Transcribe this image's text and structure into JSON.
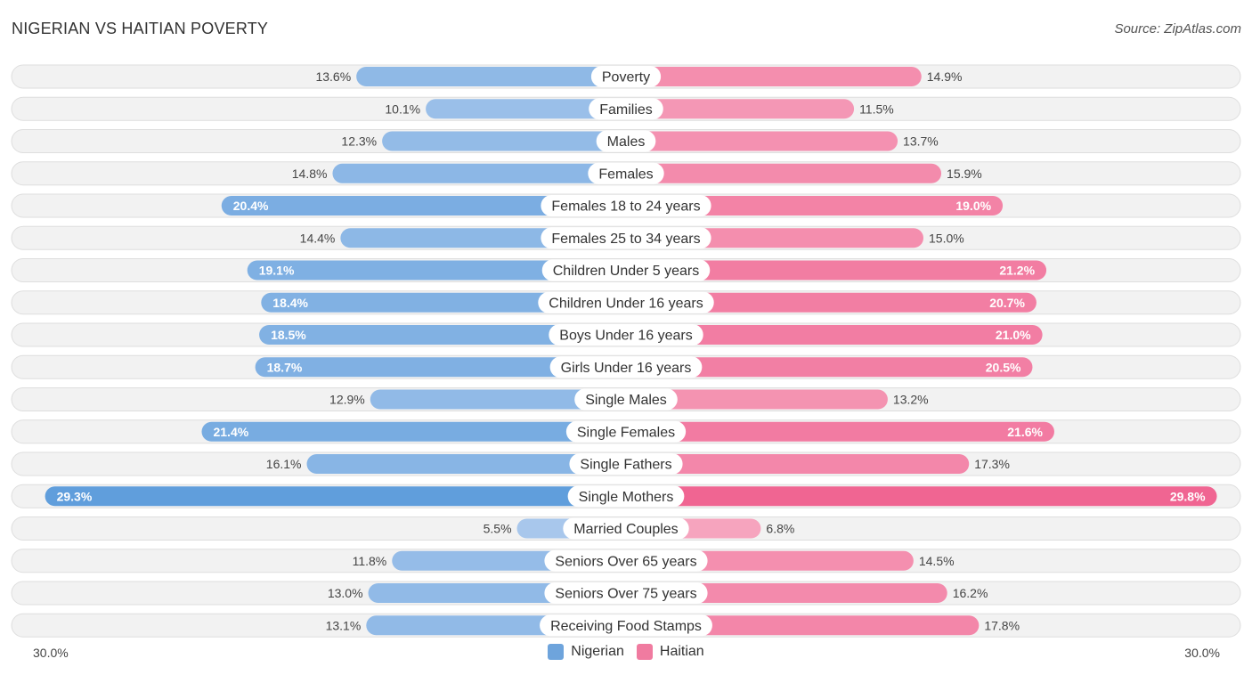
{
  "header": {
    "title": "NIGERIAN VS HAITIAN POVERTY",
    "source": "Source: ZipAtlas.com"
  },
  "colors": {
    "nigerian_light": "#a9c8ec",
    "nigerian_dark": "#5f9ddc",
    "haitian_light": "#f6a9c1",
    "haitian_dark": "#f06592",
    "row_bg": "#f2f2f2",
    "row_border": "#dedede"
  },
  "axis": {
    "left_label": "30.0%",
    "right_label": "30.0%"
  },
  "legend": [
    {
      "name": "Nigerian",
      "color": "#6ea4dc"
    },
    {
      "name": "Haitian",
      "color": "#f07ba0"
    }
  ],
  "chart_data": {
    "type": "bar",
    "orientation": "horizontal-diverging",
    "title": "NIGERIAN VS HAITIAN POVERTY",
    "xlim": [
      -30,
      30
    ],
    "xlabel": "",
    "ylabel": "",
    "categories": [
      "Poverty",
      "Families",
      "Males",
      "Females",
      "Females 18 to 24 years",
      "Females 25 to 34 years",
      "Children Under 5 years",
      "Children Under 16 years",
      "Boys Under 16 years",
      "Girls Under 16 years",
      "Single Males",
      "Single Females",
      "Single Fathers",
      "Single Mothers",
      "Married Couples",
      "Seniors Over 65 years",
      "Seniors Over 75 years",
      "Receiving Food Stamps"
    ],
    "series": [
      {
        "name": "Nigerian",
        "side": "left",
        "values": [
          13.6,
          10.1,
          12.3,
          14.8,
          20.4,
          14.4,
          19.1,
          18.4,
          18.5,
          18.7,
          12.9,
          21.4,
          16.1,
          29.3,
          5.5,
          11.8,
          13.0,
          13.1
        ],
        "labels": [
          "13.6%",
          "10.1%",
          "12.3%",
          "14.8%",
          "20.4%",
          "14.4%",
          "19.1%",
          "18.4%",
          "18.5%",
          "18.7%",
          "12.9%",
          "21.4%",
          "16.1%",
          "29.3%",
          "5.5%",
          "11.8%",
          "13.0%",
          "13.1%"
        ]
      },
      {
        "name": "Haitian",
        "side": "right",
        "values": [
          14.9,
          11.5,
          13.7,
          15.9,
          19.0,
          15.0,
          21.2,
          20.7,
          21.0,
          20.5,
          13.2,
          21.6,
          17.3,
          29.8,
          6.8,
          14.5,
          16.2,
          17.8
        ],
        "labels": [
          "14.9%",
          "11.5%",
          "13.7%",
          "15.9%",
          "19.0%",
          "15.0%",
          "21.2%",
          "20.7%",
          "21.0%",
          "20.5%",
          "13.2%",
          "21.6%",
          "17.3%",
          "29.8%",
          "6.8%",
          "14.5%",
          "16.2%",
          "17.8%"
        ]
      }
    ]
  }
}
